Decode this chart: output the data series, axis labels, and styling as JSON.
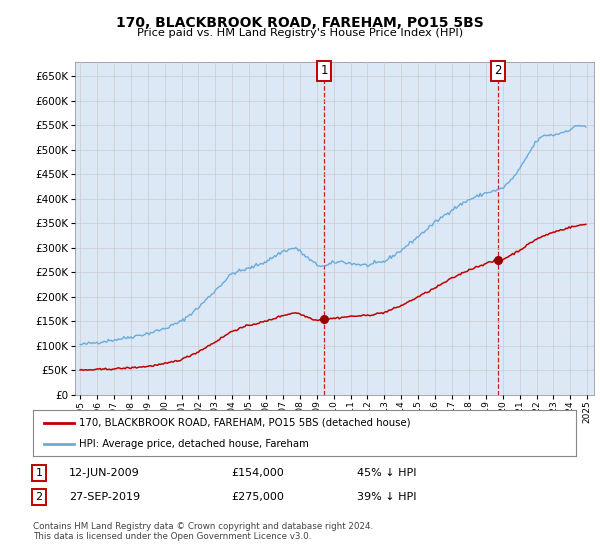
{
  "title": "170, BLACKBROOK ROAD, FAREHAM, PO15 5BS",
  "subtitle": "Price paid vs. HM Land Registry's House Price Index (HPI)",
  "legend_line1": "170, BLACKBROOK ROAD, FAREHAM, PO15 5BS (detached house)",
  "legend_line2": "HPI: Average price, detached house, Fareham",
  "note": "Contains HM Land Registry data © Crown copyright and database right 2024.\nThis data is licensed under the Open Government Licence v3.0.",
  "marker1_date": "12-JUN-2009",
  "marker1_price": "£154,000",
  "marker1_hpi": "45% ↓ HPI",
  "marker1_x": 2009.44,
  "marker1_y": 154000,
  "marker2_date": "27-SEP-2019",
  "marker2_price": "£275,000",
  "marker2_hpi": "39% ↓ HPI",
  "marker2_x": 2019.74,
  "marker2_y": 275000,
  "ylim": [
    0,
    680000
  ],
  "xlim_start": 1994.7,
  "xlim_end": 2025.4,
  "hpi_color": "#6aabdc",
  "price_color": "#c00000",
  "marker_color": "#990000",
  "grid_color": "#cccccc",
  "background_color": "#ffffff",
  "plot_bg_color": "#dce8f5",
  "shade_color": "#c8dff0"
}
